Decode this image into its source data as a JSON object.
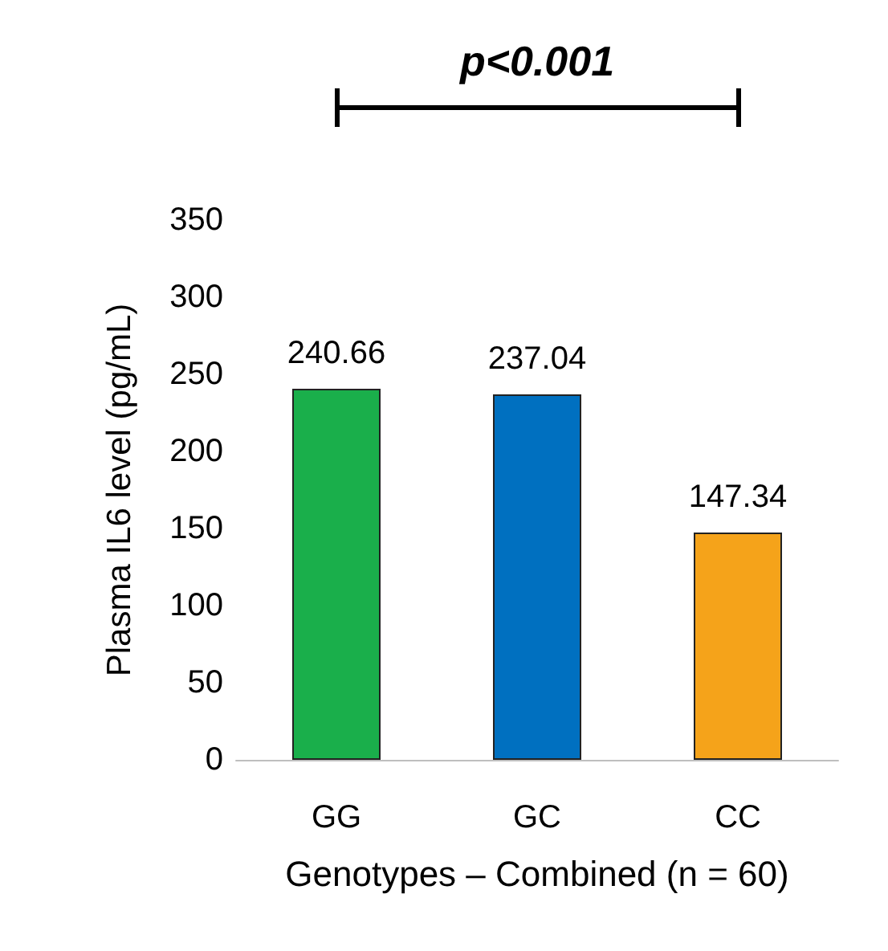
{
  "chart_data": {
    "type": "bar",
    "xlabel": "Genotypes – Combined (n = 60)",
    "ylabel": "Plasma IL6 level (pg/mL)",
    "categories": [
      "GG",
      "GC",
      "CC"
    ],
    "values": [
      240.66,
      237.04,
      147.34
    ],
    "colors": [
      "#1aaf4b",
      "#0070c0",
      "#f5a31a"
    ],
    "ylim": [
      0,
      350
    ],
    "yticks": [
      0,
      50,
      100,
      150,
      200,
      250,
      300,
      350
    ],
    "grid": false,
    "data_labels": true,
    "annotations": [
      "p<0.001"
    ]
  }
}
